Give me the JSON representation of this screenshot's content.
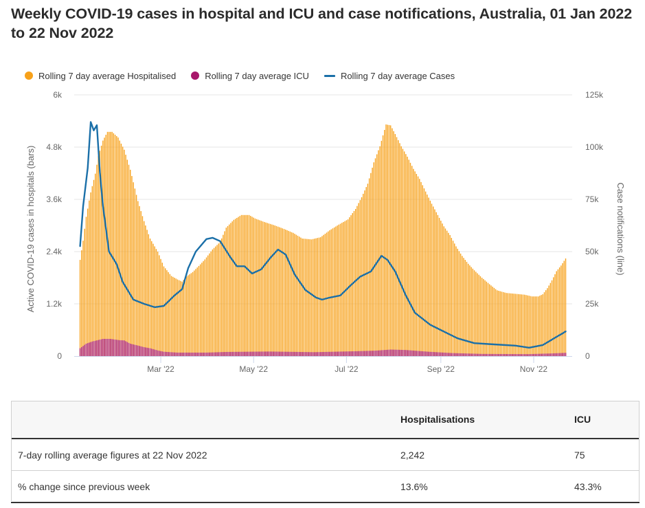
{
  "title": "Weekly COVID-19 cases in hospital and ICU and case notifications, Australia, 01 Jan 2022 to 22 Nov 2022",
  "legend": [
    {
      "label": "Rolling 7 day average Hospitalised",
      "marker": "circle",
      "color": "#f7a11a"
    },
    {
      "label": "Rolling 7 day average ICU",
      "marker": "circle",
      "color": "#a8176b"
    },
    {
      "label": "Rolling 7 day average Cases",
      "marker": "line",
      "color": "#1a6fa8"
    }
  ],
  "chart_data": {
    "type": "bar",
    "title": "Weekly COVID-19 cases in hospital and ICU and case notifications, Australia, 01 Jan 2022 to 22 Nov 2022",
    "x_type": "daily dates (day of year 2022, 0 = 01 Jan)",
    "x_start": "2022-01-01",
    "x_end": "2022-11-22",
    "x_ticks": [
      {
        "label": "Mar '22",
        "day": 59
      },
      {
        "label": "May '22",
        "day": 120
      },
      {
        "label": "Jul '22",
        "day": 181
      },
      {
        "label": "Sep '22",
        "day": 243
      },
      {
        "label": "Nov '22",
        "day": 304
      }
    ],
    "xlabel": "",
    "y_left": {
      "label": "Active COVID-19 cases in hospitals (bars)",
      "range": [
        0,
        6000
      ],
      "ticks": [
        0,
        1200,
        2400,
        3600,
        4800,
        6000
      ],
      "tick_labels": [
        "0",
        "1.2k",
        "2.4k",
        "3.6k",
        "4.8k",
        "6k"
      ]
    },
    "y_right": {
      "label": "Case notifications (line)",
      "range": [
        0,
        125000
      ],
      "ticks": [
        0,
        25000,
        50000,
        75000,
        100000,
        125000
      ],
      "tick_labels": [
        "0",
        "25k",
        "50k",
        "75k",
        "100k",
        "125k"
      ]
    },
    "grid": true,
    "legend_position": "top-left",
    "series": [
      {
        "name": "Rolling 7 day average Hospitalised",
        "type": "bar",
        "axis": "left",
        "color": "#f7a11a",
        "points": [
          [
            6,
            2210
          ],
          [
            8,
            2650
          ],
          [
            10,
            3200
          ],
          [
            13,
            3760
          ],
          [
            16,
            4190
          ],
          [
            18,
            4600
          ],
          [
            21,
            4950
          ],
          [
            24,
            5150
          ],
          [
            27,
            5150
          ],
          [
            31,
            5020
          ],
          [
            35,
            4740
          ],
          [
            39,
            4280
          ],
          [
            44,
            3560
          ],
          [
            48,
            3100
          ],
          [
            52,
            2700
          ],
          [
            57,
            2400
          ],
          [
            61,
            2060
          ],
          [
            66,
            1840
          ],
          [
            70,
            1760
          ],
          [
            73,
            1710
          ],
          [
            76,
            1830
          ],
          [
            80,
            1930
          ],
          [
            84,
            2070
          ],
          [
            88,
            2220
          ],
          [
            93,
            2450
          ],
          [
            98,
            2620
          ],
          [
            102,
            2950
          ],
          [
            107,
            3130
          ],
          [
            112,
            3240
          ],
          [
            117,
            3240
          ],
          [
            121,
            3160
          ],
          [
            127,
            3080
          ],
          [
            134,
            3000
          ],
          [
            140,
            2920
          ],
          [
            146,
            2830
          ],
          [
            152,
            2700
          ],
          [
            158,
            2680
          ],
          [
            164,
            2730
          ],
          [
            170,
            2890
          ],
          [
            176,
            3020
          ],
          [
            182,
            3140
          ],
          [
            187,
            3380
          ],
          [
            191,
            3650
          ],
          [
            195,
            3960
          ],
          [
            199,
            4450
          ],
          [
            203,
            4820
          ],
          [
            207,
            5320
          ],
          [
            210,
            5300
          ],
          [
            213,
            5100
          ],
          [
            217,
            4820
          ],
          [
            221,
            4580
          ],
          [
            225,
            4300
          ],
          [
            229,
            4070
          ],
          [
            233,
            3780
          ],
          [
            237,
            3500
          ],
          [
            241,
            3240
          ],
          [
            245,
            2980
          ],
          [
            249,
            2780
          ],
          [
            253,
            2520
          ],
          [
            257,
            2300
          ],
          [
            261,
            2120
          ],
          [
            265,
            1970
          ],
          [
            270,
            1800
          ],
          [
            275,
            1650
          ],
          [
            280,
            1510
          ],
          [
            286,
            1450
          ],
          [
            292,
            1430
          ],
          [
            298,
            1410
          ],
          [
            303,
            1370
          ],
          [
            307,
            1370
          ],
          [
            310,
            1420
          ],
          [
            313,
            1560
          ],
          [
            316,
            1740
          ],
          [
            319,
            1950
          ],
          [
            322,
            2080
          ],
          [
            325,
            2242
          ]
        ]
      },
      {
        "name": "Rolling 7 day average ICU",
        "type": "bar",
        "axis": "left",
        "color": "#a8176b",
        "points": [
          [
            6,
            180
          ],
          [
            10,
            285
          ],
          [
            14,
            335
          ],
          [
            21,
            395
          ],
          [
            26,
            395
          ],
          [
            32,
            365
          ],
          [
            35,
            360
          ],
          [
            39,
            285
          ],
          [
            44,
            242
          ],
          [
            48,
            205
          ],
          [
            52,
            180
          ],
          [
            57,
            130
          ],
          [
            61,
            100
          ],
          [
            70,
            80
          ],
          [
            89,
            80
          ],
          [
            102,
            95
          ],
          [
            130,
            105
          ],
          [
            160,
            90
          ],
          [
            185,
            110
          ],
          [
            200,
            125
          ],
          [
            210,
            150
          ],
          [
            220,
            140
          ],
          [
            235,
            100
          ],
          [
            250,
            70
          ],
          [
            270,
            50
          ],
          [
            300,
            45
          ],
          [
            315,
            60
          ],
          [
            325,
            75
          ]
        ]
      },
      {
        "name": "Rolling 7 day average Cases",
        "type": "line",
        "axis": "right",
        "color": "#1a6fa8",
        "points": [
          [
            6,
            52600
          ],
          [
            8,
            71700
          ],
          [
            11,
            90000
          ],
          [
            13,
            112000
          ],
          [
            15,
            108000
          ],
          [
            17,
            110500
          ],
          [
            19,
            88000
          ],
          [
            21,
            72000
          ],
          [
            25,
            50000
          ],
          [
            30,
            44000
          ],
          [
            34,
            35500
          ],
          [
            41,
            27000
          ],
          [
            48,
            25000
          ],
          [
            55,
            23400
          ],
          [
            61,
            24000
          ],
          [
            68,
            29000
          ],
          [
            73,
            32000
          ],
          [
            77,
            42000
          ],
          [
            82,
            50000
          ],
          [
            89,
            56000
          ],
          [
            93,
            56600
          ],
          [
            98,
            55000
          ],
          [
            105,
            47000
          ],
          [
            109,
            43000
          ],
          [
            114,
            43000
          ],
          [
            119,
            39500
          ],
          [
            125,
            41500
          ],
          [
            131,
            47000
          ],
          [
            136,
            51000
          ],
          [
            141,
            48600
          ],
          [
            147,
            39000
          ],
          [
            154,
            31600
          ],
          [
            161,
            28000
          ],
          [
            165,
            27000
          ],
          [
            170,
            28000
          ],
          [
            177,
            29000
          ],
          [
            184,
            34000
          ],
          [
            190,
            38000
          ],
          [
            197,
            40500
          ],
          [
            204,
            48000
          ],
          [
            208,
            46000
          ],
          [
            213,
            40500
          ],
          [
            220,
            29000
          ],
          [
            226,
            20700
          ],
          [
            236,
            15000
          ],
          [
            247,
            11000
          ],
          [
            254,
            8500
          ],
          [
            265,
            6200
          ],
          [
            278,
            5600
          ],
          [
            292,
            5000
          ],
          [
            301,
            4000
          ],
          [
            310,
            5300
          ],
          [
            314,
            7000
          ],
          [
            319,
            9200
          ],
          [
            323,
            10900
          ],
          [
            325,
            11800
          ]
        ]
      }
    ]
  },
  "table": {
    "headers": [
      "",
      "Hospitalisations",
      "ICU"
    ],
    "rows": [
      [
        "7-day rolling average figures at 22 Nov 2022",
        "2,242",
        "75"
      ],
      [
        "% change since previous week",
        "13.6%",
        "43.3%"
      ]
    ]
  }
}
